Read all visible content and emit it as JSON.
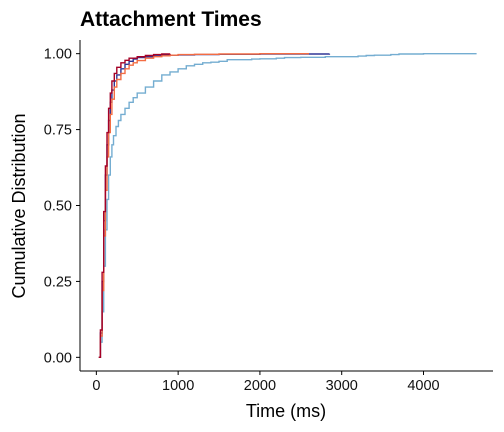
{
  "chart_data": {
    "type": "line",
    "title": "Attachment Times",
    "xlabel": "Time (ms)",
    "ylabel": "Cumulative Distribution",
    "xlim": [
      -200,
      4850
    ],
    "ylim": [
      -0.045,
      1.045
    ],
    "x_ticks": [
      0,
      1000,
      2000,
      3000,
      4000
    ],
    "x_tick_labels": [
      "0",
      "1000",
      "2000",
      "3000",
      "4000"
    ],
    "y_ticks": [
      0,
      0.25,
      0.5,
      0.75,
      1
    ],
    "y_tick_labels": [
      "0.00",
      "0.25",
      "0.50",
      "0.75",
      "1.00"
    ],
    "grid": false,
    "legend": "none",
    "series": [
      {
        "color": "#74add1",
        "points": [
          [
            30,
            0
          ],
          [
            50,
            0.05
          ],
          [
            70,
            0.15
          ],
          [
            90,
            0.3
          ],
          [
            110,
            0.42
          ],
          [
            130,
            0.52
          ],
          [
            150,
            0.6
          ],
          [
            170,
            0.66
          ],
          [
            190,
            0.7
          ],
          [
            210,
            0.73
          ],
          [
            240,
            0.76
          ],
          [
            270,
            0.78
          ],
          [
            300,
            0.8
          ],
          [
            350,
            0.82
          ],
          [
            400,
            0.84
          ],
          [
            450,
            0.855
          ],
          [
            500,
            0.87
          ],
          [
            600,
            0.89
          ],
          [
            700,
            0.91
          ],
          [
            800,
            0.93
          ],
          [
            900,
            0.94
          ],
          [
            1000,
            0.95
          ],
          [
            1100,
            0.96
          ],
          [
            1200,
            0.965
          ],
          [
            1300,
            0.97
          ],
          [
            1400,
            0.972
          ],
          [
            1500,
            0.975
          ],
          [
            1600,
            0.98
          ],
          [
            1700,
            0.98
          ],
          [
            1900,
            0.982
          ],
          [
            2000,
            0.983
          ],
          [
            2200,
            0.985
          ],
          [
            2300,
            0.987
          ],
          [
            2500,
            0.988
          ],
          [
            2800,
            0.99
          ],
          [
            3000,
            0.99
          ],
          [
            3200,
            0.992
          ],
          [
            3300,
            0.994
          ],
          [
            3400,
            0.995
          ],
          [
            3600,
            0.997
          ],
          [
            3700,
            0.999
          ],
          [
            4000,
            1
          ],
          [
            4650,
            1
          ]
        ]
      },
      {
        "color": "#313695",
        "points": [
          [
            30,
            0
          ],
          [
            50,
            0.08
          ],
          [
            70,
            0.25
          ],
          [
            90,
            0.45
          ],
          [
            110,
            0.6
          ],
          [
            130,
            0.7
          ],
          [
            150,
            0.78
          ],
          [
            170,
            0.84
          ],
          [
            190,
            0.88
          ],
          [
            220,
            0.91
          ],
          [
            250,
            0.93
          ],
          [
            300,
            0.95
          ],
          [
            350,
            0.965
          ],
          [
            400,
            0.975
          ],
          [
            450,
            0.982
          ],
          [
            500,
            0.987
          ],
          [
            600,
            0.99
          ],
          [
            700,
            0.993
          ],
          [
            800,
            0.995
          ],
          [
            1000,
            0.996
          ],
          [
            1200,
            0.997
          ],
          [
            1500,
            0.998
          ],
          [
            2000,
            0.999
          ],
          [
            2600,
            0.999
          ],
          [
            2850,
            1
          ]
        ]
      },
      {
        "color": "#f46d43",
        "points": [
          [
            30,
            0
          ],
          [
            50,
            0.07
          ],
          [
            70,
            0.22
          ],
          [
            90,
            0.4
          ],
          [
            110,
            0.55
          ],
          [
            130,
            0.66
          ],
          [
            150,
            0.74
          ],
          [
            170,
            0.8
          ],
          [
            190,
            0.85
          ],
          [
            220,
            0.89
          ],
          [
            250,
            0.915
          ],
          [
            300,
            0.935
          ],
          [
            350,
            0.95
          ],
          [
            400,
            0.962
          ],
          [
            450,
            0.97
          ],
          [
            500,
            0.977
          ],
          [
            600,
            0.985
          ],
          [
            700,
            0.99
          ],
          [
            800,
            0.993
          ],
          [
            900,
            0.995
          ],
          [
            1000,
            0.997
          ],
          [
            1200,
            0.998
          ],
          [
            1500,
            0.999
          ],
          [
            2000,
            1
          ],
          [
            2600,
            1
          ]
        ]
      },
      {
        "color": "#a50026",
        "points": [
          [
            30,
            0
          ],
          [
            50,
            0.09
          ],
          [
            70,
            0.28
          ],
          [
            90,
            0.48
          ],
          [
            110,
            0.63
          ],
          [
            130,
            0.74
          ],
          [
            150,
            0.82
          ],
          [
            170,
            0.87
          ],
          [
            190,
            0.91
          ],
          [
            220,
            0.935
          ],
          [
            250,
            0.955
          ],
          [
            300,
            0.97
          ],
          [
            350,
            0.978
          ],
          [
            400,
            0.985
          ],
          [
            500,
            0.99
          ],
          [
            600,
            0.994
          ],
          [
            700,
            0.997
          ],
          [
            800,
            0.999
          ],
          [
            900,
            1
          ]
        ]
      }
    ]
  }
}
